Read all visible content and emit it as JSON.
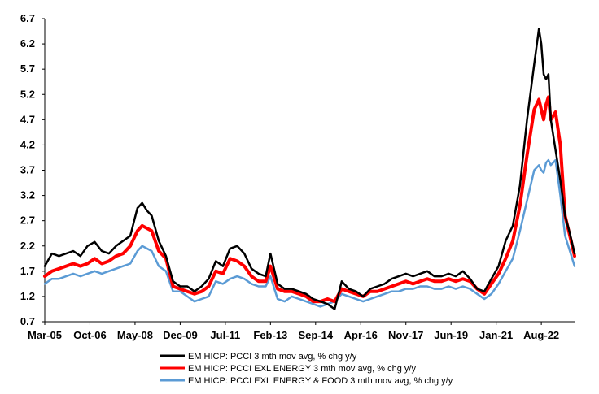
{
  "chart_data": {
    "type": "line",
    "title": "",
    "xlabel": "",
    "ylabel": "",
    "ylim": [
      0.7,
      6.7
    ],
    "y_ticks": [
      "6.7",
      "6.2",
      "5.7",
      "5.2",
      "4.7",
      "4.2",
      "3.7",
      "3.2",
      "2.7",
      "2.2",
      "1.7",
      "1.2",
      "0.7"
    ],
    "x_ticks": [
      "Mar-05",
      "Oct-06",
      "May-08",
      "Dec-09",
      "Jul-11",
      "Feb-13",
      "Sep-14",
      "Apr-16",
      "Nov-17",
      "Jun-19",
      "Jan-21",
      "Aug-22"
    ],
    "grid": false,
    "legend_position": "bottom",
    "series": [
      {
        "name": "EM HICP: PCCI 3 mth mov avg, % chg y/y",
        "color": "#000000",
        "points": [
          [
            "Mar-05",
            1.8
          ],
          [
            "Jun-05",
            2.05
          ],
          [
            "Sep-05",
            2.0
          ],
          [
            "Dec-05",
            2.05
          ],
          [
            "Mar-06",
            2.1
          ],
          [
            "Jun-06",
            2.0
          ],
          [
            "Sep-06",
            2.2
          ],
          [
            "Dec-06",
            2.28
          ],
          [
            "Mar-07",
            2.1
          ],
          [
            "Jun-07",
            2.05
          ],
          [
            "Sep-07",
            2.2
          ],
          [
            "Dec-07",
            2.3
          ],
          [
            "Mar-08",
            2.4
          ],
          [
            "Jun-08",
            2.95
          ],
          [
            "Aug-08",
            3.05
          ],
          [
            "Oct-08",
            2.9
          ],
          [
            "Dec-08",
            2.8
          ],
          [
            "Mar-09",
            2.3
          ],
          [
            "Jun-09",
            2.0
          ],
          [
            "Sep-09",
            1.5
          ],
          [
            "Dec-09",
            1.4
          ],
          [
            "Mar-10",
            1.4
          ],
          [
            "Jun-10",
            1.3
          ],
          [
            "Sep-10",
            1.4
          ],
          [
            "Dec-10",
            1.55
          ],
          [
            "Mar-11",
            1.9
          ],
          [
            "Jun-11",
            1.8
          ],
          [
            "Sep-11",
            2.15
          ],
          [
            "Dec-11",
            2.2
          ],
          [
            "Mar-12",
            2.05
          ],
          [
            "Jun-12",
            1.75
          ],
          [
            "Sep-12",
            1.65
          ],
          [
            "Dec-12",
            1.6
          ],
          [
            "Feb-13",
            2.05
          ],
          [
            "May-13",
            1.45
          ],
          [
            "Aug-13",
            1.35
          ],
          [
            "Nov-13",
            1.35
          ],
          [
            "Feb-14",
            1.3
          ],
          [
            "May-14",
            1.25
          ],
          [
            "Aug-14",
            1.15
          ],
          [
            "Nov-14",
            1.1
          ],
          [
            "Feb-15",
            1.05
          ],
          [
            "May-15",
            0.95
          ],
          [
            "Aug-15",
            1.5
          ],
          [
            "Nov-15",
            1.35
          ],
          [
            "Feb-16",
            1.3
          ],
          [
            "May-16",
            1.2
          ],
          [
            "Aug-16",
            1.35
          ],
          [
            "Nov-16",
            1.4
          ],
          [
            "Feb-17",
            1.45
          ],
          [
            "May-17",
            1.55
          ],
          [
            "Aug-17",
            1.6
          ],
          [
            "Nov-17",
            1.65
          ],
          [
            "Feb-18",
            1.6
          ],
          [
            "May-18",
            1.65
          ],
          [
            "Aug-18",
            1.7
          ],
          [
            "Nov-18",
            1.6
          ],
          [
            "Feb-19",
            1.6
          ],
          [
            "May-19",
            1.65
          ],
          [
            "Aug-19",
            1.6
          ],
          [
            "Nov-19",
            1.7
          ],
          [
            "Feb-20",
            1.55
          ],
          [
            "May-20",
            1.35
          ],
          [
            "Aug-20",
            1.3
          ],
          [
            "Nov-20",
            1.55
          ],
          [
            "Feb-21",
            1.8
          ],
          [
            "May-21",
            2.3
          ],
          [
            "Aug-21",
            2.6
          ],
          [
            "Nov-21",
            3.4
          ],
          [
            "Feb-22",
            4.7
          ],
          [
            "May-22",
            5.8
          ],
          [
            "Jul-22",
            6.5
          ],
          [
            "Aug-22",
            6.2
          ],
          [
            "Sep-22",
            5.6
          ],
          [
            "Oct-22",
            5.5
          ],
          [
            "Nov-22",
            5.6
          ],
          [
            "Dec-22",
            4.7
          ],
          [
            "Feb-23",
            4.1
          ],
          [
            "Apr-23",
            3.5
          ],
          [
            "Jun-23",
            2.8
          ],
          [
            "Aug-23",
            2.45
          ],
          [
            "Oct-23",
            2.05
          ]
        ]
      },
      {
        "name": "EM HICP: PCCI EXL ENERGY 3 mth mov avg, % chg y/y",
        "color": "#ff0000",
        "points": [
          [
            "Mar-05",
            1.6
          ],
          [
            "Jun-05",
            1.7
          ],
          [
            "Sep-05",
            1.75
          ],
          [
            "Dec-05",
            1.8
          ],
          [
            "Mar-06",
            1.85
          ],
          [
            "Jun-06",
            1.8
          ],
          [
            "Sep-06",
            1.85
          ],
          [
            "Dec-06",
            1.95
          ],
          [
            "Mar-07",
            1.85
          ],
          [
            "Jun-07",
            1.9
          ],
          [
            "Sep-07",
            2.0
          ],
          [
            "Dec-07",
            2.05
          ],
          [
            "Mar-08",
            2.2
          ],
          [
            "Jun-08",
            2.5
          ],
          [
            "Aug-08",
            2.6
          ],
          [
            "Oct-08",
            2.55
          ],
          [
            "Dec-08",
            2.5
          ],
          [
            "Mar-09",
            2.1
          ],
          [
            "Jun-09",
            1.95
          ],
          [
            "Sep-09",
            1.4
          ],
          [
            "Dec-09",
            1.35
          ],
          [
            "Mar-10",
            1.3
          ],
          [
            "Jun-10",
            1.25
          ],
          [
            "Sep-10",
            1.3
          ],
          [
            "Dec-10",
            1.4
          ],
          [
            "Mar-11",
            1.7
          ],
          [
            "Jun-11",
            1.65
          ],
          [
            "Sep-11",
            1.95
          ],
          [
            "Dec-11",
            1.9
          ],
          [
            "Mar-12",
            1.8
          ],
          [
            "Jun-12",
            1.6
          ],
          [
            "Sep-12",
            1.5
          ],
          [
            "Dec-12",
            1.5
          ],
          [
            "Feb-13",
            1.8
          ],
          [
            "May-13",
            1.35
          ],
          [
            "Aug-13",
            1.3
          ],
          [
            "Nov-13",
            1.3
          ],
          [
            "Feb-14",
            1.25
          ],
          [
            "May-14",
            1.2
          ],
          [
            "Aug-14",
            1.1
          ],
          [
            "Nov-14",
            1.1
          ],
          [
            "Feb-15",
            1.15
          ],
          [
            "May-15",
            1.1
          ],
          [
            "Aug-15",
            1.35
          ],
          [
            "Nov-15",
            1.3
          ],
          [
            "Feb-16",
            1.25
          ],
          [
            "May-16",
            1.2
          ],
          [
            "Aug-16",
            1.3
          ],
          [
            "Nov-16",
            1.3
          ],
          [
            "Feb-17",
            1.35
          ],
          [
            "May-17",
            1.4
          ],
          [
            "Aug-17",
            1.45
          ],
          [
            "Nov-17",
            1.5
          ],
          [
            "Feb-18",
            1.45
          ],
          [
            "May-18",
            1.5
          ],
          [
            "Aug-18",
            1.55
          ],
          [
            "Nov-18",
            1.5
          ],
          [
            "Feb-19",
            1.5
          ],
          [
            "May-19",
            1.55
          ],
          [
            "Aug-19",
            1.5
          ],
          [
            "Nov-19",
            1.55
          ],
          [
            "Feb-20",
            1.5
          ],
          [
            "May-20",
            1.35
          ],
          [
            "Aug-20",
            1.25
          ],
          [
            "Nov-20",
            1.45
          ],
          [
            "Feb-21",
            1.65
          ],
          [
            "May-21",
            1.95
          ],
          [
            "Aug-21",
            2.3
          ],
          [
            "Nov-21",
            3.0
          ],
          [
            "Feb-22",
            4.0
          ],
          [
            "May-22",
            4.9
          ],
          [
            "Jul-22",
            5.1
          ],
          [
            "Aug-22",
            4.9
          ],
          [
            "Sep-22",
            4.7
          ],
          [
            "Oct-22",
            5.0
          ],
          [
            "Nov-22",
            5.15
          ],
          [
            "Dec-22",
            4.7
          ],
          [
            "Feb-23",
            4.85
          ],
          [
            "Apr-23",
            4.2
          ],
          [
            "Jun-23",
            2.8
          ],
          [
            "Aug-23",
            2.4
          ],
          [
            "Oct-23",
            2.0
          ]
        ]
      },
      {
        "name": "EM HICP: PCCI EXL ENERGY & FOOD 3 mth mov avg, % chg y/y",
        "color": "#5b9bd5",
        "points": [
          [
            "Mar-05",
            1.45
          ],
          [
            "Jun-05",
            1.55
          ],
          [
            "Sep-05",
            1.55
          ],
          [
            "Dec-05",
            1.6
          ],
          [
            "Mar-06",
            1.65
          ],
          [
            "Jun-06",
            1.6
          ],
          [
            "Sep-06",
            1.65
          ],
          [
            "Dec-06",
            1.7
          ],
          [
            "Mar-07",
            1.65
          ],
          [
            "Jun-07",
            1.7
          ],
          [
            "Sep-07",
            1.75
          ],
          [
            "Dec-07",
            1.8
          ],
          [
            "Mar-08",
            1.85
          ],
          [
            "Jun-08",
            2.1
          ],
          [
            "Aug-08",
            2.2
          ],
          [
            "Oct-08",
            2.15
          ],
          [
            "Dec-08",
            2.1
          ],
          [
            "Mar-09",
            1.8
          ],
          [
            "Jun-09",
            1.7
          ],
          [
            "Sep-09",
            1.3
          ],
          [
            "Dec-09",
            1.3
          ],
          [
            "Mar-10",
            1.2
          ],
          [
            "Jun-10",
            1.1
          ],
          [
            "Sep-10",
            1.15
          ],
          [
            "Dec-10",
            1.2
          ],
          [
            "Mar-11",
            1.5
          ],
          [
            "Jun-11",
            1.45
          ],
          [
            "Sep-11",
            1.55
          ],
          [
            "Dec-11",
            1.6
          ],
          [
            "Mar-12",
            1.55
          ],
          [
            "Jun-12",
            1.45
          ],
          [
            "Sep-12",
            1.4
          ],
          [
            "Dec-12",
            1.4
          ],
          [
            "Feb-13",
            1.6
          ],
          [
            "May-13",
            1.15
          ],
          [
            "Aug-13",
            1.1
          ],
          [
            "Nov-13",
            1.2
          ],
          [
            "Feb-14",
            1.15
          ],
          [
            "May-14",
            1.1
          ],
          [
            "Aug-14",
            1.05
          ],
          [
            "Nov-14",
            1.0
          ],
          [
            "Feb-15",
            1.05
          ],
          [
            "May-15",
            1.1
          ],
          [
            "Aug-15",
            1.25
          ],
          [
            "Nov-15",
            1.2
          ],
          [
            "Feb-16",
            1.15
          ],
          [
            "May-16",
            1.1
          ],
          [
            "Aug-16",
            1.15
          ],
          [
            "Nov-16",
            1.2
          ],
          [
            "Feb-17",
            1.25
          ],
          [
            "May-17",
            1.3
          ],
          [
            "Aug-17",
            1.3
          ],
          [
            "Nov-17",
            1.35
          ],
          [
            "Feb-18",
            1.35
          ],
          [
            "May-18",
            1.4
          ],
          [
            "Aug-18",
            1.4
          ],
          [
            "Nov-18",
            1.35
          ],
          [
            "Feb-19",
            1.35
          ],
          [
            "May-19",
            1.4
          ],
          [
            "Aug-19",
            1.35
          ],
          [
            "Nov-19",
            1.4
          ],
          [
            "Feb-20",
            1.35
          ],
          [
            "May-20",
            1.25
          ],
          [
            "Aug-20",
            1.15
          ],
          [
            "Nov-20",
            1.25
          ],
          [
            "Feb-21",
            1.45
          ],
          [
            "May-21",
            1.7
          ],
          [
            "Aug-21",
            1.95
          ],
          [
            "Nov-21",
            2.5
          ],
          [
            "Feb-22",
            3.1
          ],
          [
            "May-22",
            3.7
          ],
          [
            "Jul-22",
            3.8
          ],
          [
            "Aug-22",
            3.7
          ],
          [
            "Sep-22",
            3.65
          ],
          [
            "Oct-22",
            3.85
          ],
          [
            "Nov-22",
            3.9
          ],
          [
            "Dec-22",
            3.8
          ],
          [
            "Feb-23",
            3.9
          ],
          [
            "Apr-23",
            3.2
          ],
          [
            "Jun-23",
            2.4
          ],
          [
            "Aug-23",
            2.1
          ],
          [
            "Oct-23",
            1.8
          ]
        ]
      }
    ]
  }
}
